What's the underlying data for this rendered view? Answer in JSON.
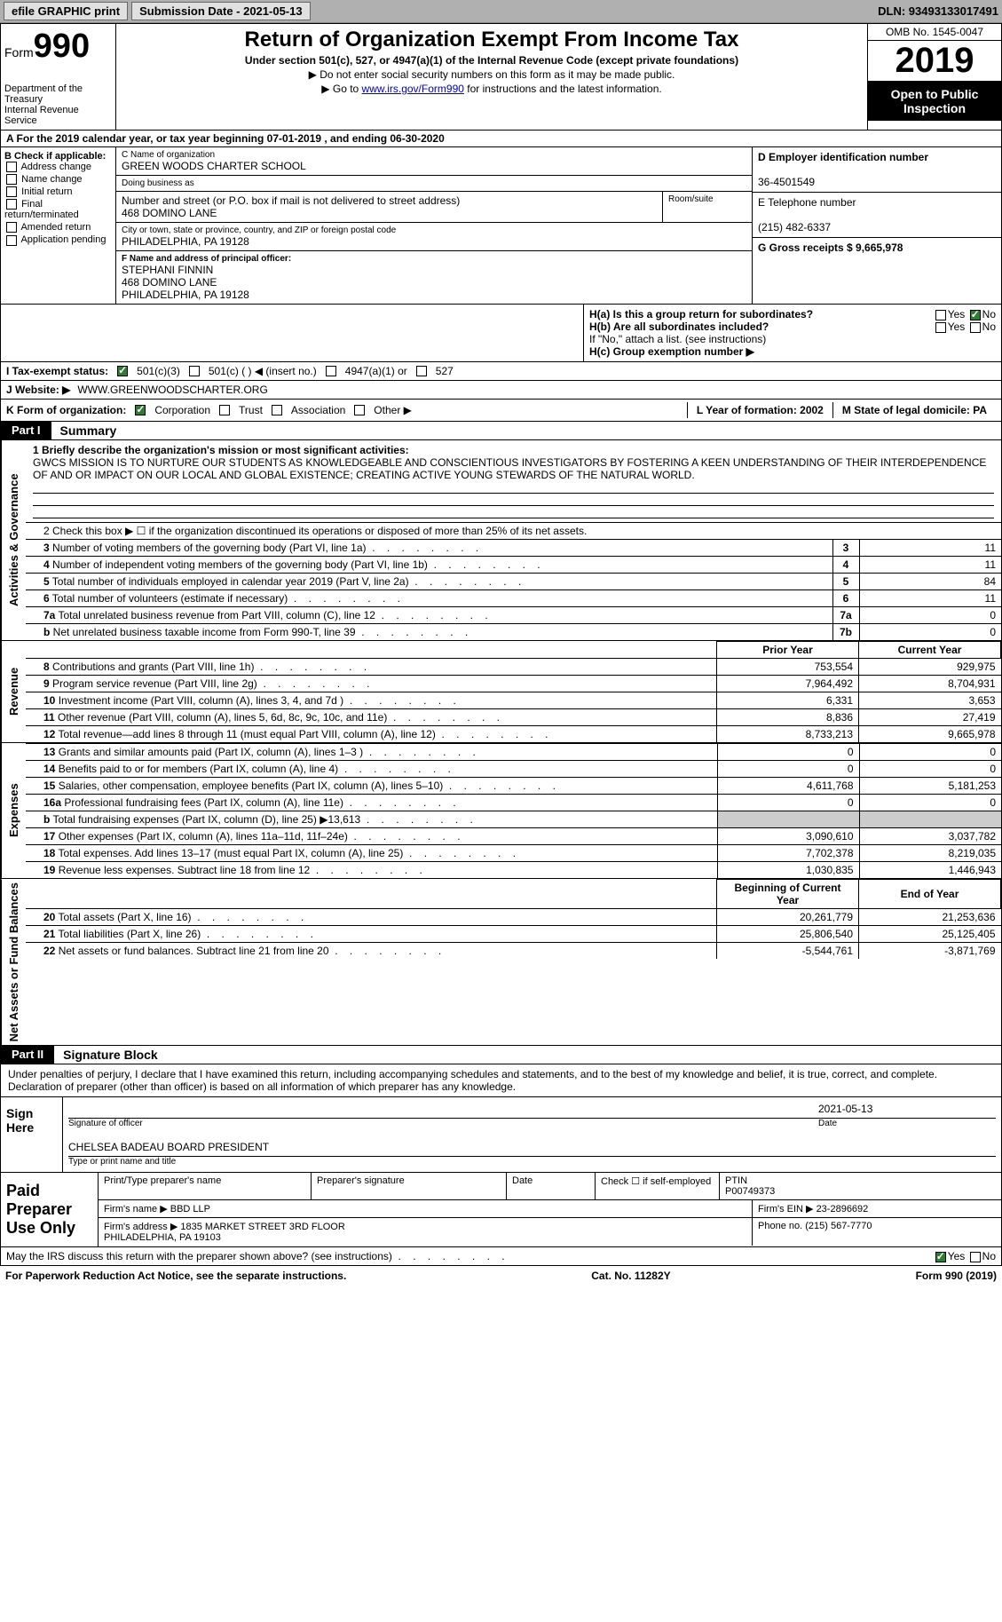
{
  "topbar": {
    "efile_btn": "efile GRAPHIC print",
    "submission_label": "Submission Date - 2021-05-13",
    "dln": "DLN: 93493133017491"
  },
  "header": {
    "form_prefix": "Form",
    "form_num": "990",
    "dept": "Department of the Treasury\nInternal Revenue Service",
    "title": "Return of Organization Exempt From Income Tax",
    "sub": "Under section 501(c), 527, or 4947(a)(1) of the Internal Revenue Code (except private foundations)",
    "note1": "▶ Do not enter social security numbers on this form as it may be made public.",
    "note2_pre": "▶ Go to ",
    "note2_link": "www.irs.gov/Form990",
    "note2_post": " for instructions and the latest information.",
    "omb": "OMB No. 1545-0047",
    "year": "2019",
    "inspect": "Open to Public Inspection"
  },
  "row_a": "A For the 2019 calendar year, or tax year beginning 07-01-2019   , and ending 06-30-2020",
  "col_b": {
    "title": "B Check if applicable:",
    "items": [
      "Address change",
      "Name change",
      "Initial return",
      "Final return/terminated",
      "Amended return",
      "Application pending"
    ]
  },
  "col_c": {
    "name_lbl": "C Name of organization",
    "name": "GREEN WOODS CHARTER SCHOOL",
    "dba_lbl": "Doing business as",
    "dba": "",
    "street_lbl": "Number and street (or P.O. box if mail is not delivered to street address)",
    "street": "468 DOMINO LANE",
    "room_lbl": "Room/suite",
    "city_lbl": "City or town, state or province, country, and ZIP or foreign postal code",
    "city": "PHILADELPHIA, PA  19128",
    "officer_lbl": "F Name and address of principal officer:",
    "officer": "STEPHANI FINNIN\n468 DOMINO LANE\nPHILADELPHIA, PA  19128"
  },
  "col_d": {
    "ein_lbl": "D Employer identification number",
    "ein": "36-4501549",
    "phone_lbl": "E Telephone number",
    "phone": "(215) 482-6337",
    "gross_lbl": "G Gross receipts $ 9,665,978"
  },
  "h_section": {
    "ha": "H(a)  Is this a group return for subordinates?",
    "hb": "H(b)  Are all subordinates included?",
    "hb_note": "If \"No,\" attach a list. (see instructions)",
    "hc": "H(c)  Group exemption number ▶"
  },
  "status_row": {
    "lbl": "I   Tax-exempt status:",
    "opts": [
      "501(c)(3)",
      "501(c) (  ) ◀ (insert no.)",
      "4947(a)(1) or",
      "527"
    ]
  },
  "website_row": {
    "lbl": "J   Website: ▶",
    "val": "WWW.GREENWOODSCHARTER.ORG"
  },
  "formorg_row": {
    "lbl": "K Form of organization:",
    "opts": [
      "Corporation",
      "Trust",
      "Association",
      "Other ▶"
    ],
    "year_lbl": "L Year of formation: 2002",
    "state_lbl": "M State of legal domicile: PA"
  },
  "part1": {
    "header": "Part I",
    "title": "Summary",
    "side1": "Activities & Governance",
    "side2": "Revenue",
    "side3": "Expenses",
    "side4": "Net Assets or Fund Balances",
    "mission_lbl": "1   Briefly describe the organization's mission or most significant activities:",
    "mission": "GWCS MISSION IS TO NURTURE OUR STUDENTS AS KNOWLEDGEABLE AND CONSCIENTIOUS INVESTIGATORS BY FOSTERING A KEEN UNDERSTANDING OF THEIR INTERDEPENDENCE OF AND OR IMPACT ON OUR LOCAL AND GLOBAL EXISTENCE; CREATING ACTIVE YOUNG STEWARDS OF THE NATURAL WORLD.",
    "line2": "2   Check this box ▶ ☐  if the organization discontinued its operations or disposed of more than 25% of its net assets.",
    "gov_rows": [
      {
        "n": "3",
        "lbl": "Number of voting members of the governing body (Part VI, line 1a)",
        "box": "3",
        "val": "11"
      },
      {
        "n": "4",
        "lbl": "Number of independent voting members of the governing body (Part VI, line 1b)",
        "box": "4",
        "val": "11"
      },
      {
        "n": "5",
        "lbl": "Total number of individuals employed in calendar year 2019 (Part V, line 2a)",
        "box": "5",
        "val": "84"
      },
      {
        "n": "6",
        "lbl": "Total number of volunteers (estimate if necessary)",
        "box": "6",
        "val": "11"
      },
      {
        "n": "7a",
        "lbl": "Total unrelated business revenue from Part VIII, column (C), line 12",
        "box": "7a",
        "val": "0"
      },
      {
        "n": "b",
        "lbl": "Net unrelated business taxable income from Form 990-T, line 39",
        "box": "7b",
        "val": "0"
      }
    ],
    "col_headers": [
      "Prior Year",
      "Current Year"
    ],
    "rev_rows": [
      {
        "n": "8",
        "lbl": "Contributions and grants (Part VIII, line 1h)",
        "py": "753,554",
        "cy": "929,975"
      },
      {
        "n": "9",
        "lbl": "Program service revenue (Part VIII, line 2g)",
        "py": "7,964,492",
        "cy": "8,704,931"
      },
      {
        "n": "10",
        "lbl": "Investment income (Part VIII, column (A), lines 3, 4, and 7d )",
        "py": "6,331",
        "cy": "3,653"
      },
      {
        "n": "11",
        "lbl": "Other revenue (Part VIII, column (A), lines 5, 6d, 8c, 9c, 10c, and 11e)",
        "py": "8,836",
        "cy": "27,419"
      },
      {
        "n": "12",
        "lbl": "Total revenue—add lines 8 through 11 (must equal Part VIII, column (A), line 12)",
        "py": "8,733,213",
        "cy": "9,665,978"
      }
    ],
    "exp_rows": [
      {
        "n": "13",
        "lbl": "Grants and similar amounts paid (Part IX, column (A), lines 1–3 )",
        "py": "0",
        "cy": "0"
      },
      {
        "n": "14",
        "lbl": "Benefits paid to or for members (Part IX, column (A), line 4)",
        "py": "0",
        "cy": "0"
      },
      {
        "n": "15",
        "lbl": "Salaries, other compensation, employee benefits (Part IX, column (A), lines 5–10)",
        "py": "4,611,768",
        "cy": "5,181,253"
      },
      {
        "n": "16a",
        "lbl": "Professional fundraising fees (Part IX, column (A), line 11e)",
        "py": "0",
        "cy": "0"
      },
      {
        "n": "b",
        "lbl": "Total fundraising expenses (Part IX, column (D), line 25) ▶13,613",
        "py": "",
        "cy": "",
        "grey": true
      },
      {
        "n": "17",
        "lbl": "Other expenses (Part IX, column (A), lines 11a–11d, 11f–24e)",
        "py": "3,090,610",
        "cy": "3,037,782"
      },
      {
        "n": "18",
        "lbl": "Total expenses. Add lines 13–17 (must equal Part IX, column (A), line 25)",
        "py": "7,702,378",
        "cy": "8,219,035"
      },
      {
        "n": "19",
        "lbl": "Revenue less expenses. Subtract line 18 from line 12",
        "py": "1,030,835",
        "cy": "1,446,943"
      }
    ],
    "bal_headers": [
      "Beginning of Current Year",
      "End of Year"
    ],
    "bal_rows": [
      {
        "n": "20",
        "lbl": "Total assets (Part X, line 16)",
        "py": "20,261,779",
        "cy": "21,253,636"
      },
      {
        "n": "21",
        "lbl": "Total liabilities (Part X, line 26)",
        "py": "25,806,540",
        "cy": "25,125,405"
      },
      {
        "n": "22",
        "lbl": "Net assets or fund balances. Subtract line 21 from line 20",
        "py": "-5,544,761",
        "cy": "-3,871,769"
      }
    ]
  },
  "part2": {
    "header": "Part II",
    "title": "Signature Block",
    "perjury": "Under penalties of perjury, I declare that I have examined this return, including accompanying schedules and statements, and to the best of my knowledge and belief, it is true, correct, and complete. Declaration of preparer (other than officer) is based on all information of which preparer has any knowledge.",
    "sign_here": "Sign Here",
    "sig_officer": "Signature of officer",
    "sig_date": "2021-05-13",
    "date_lbl": "Date",
    "officer_name": "CHELSEA BADEAU BOARD PRESIDENT",
    "name_lbl": "Type or print name and title",
    "paid_lbl": "Paid Preparer Use Only",
    "prep_name_lbl": "Print/Type preparer's name",
    "prep_sig_lbl": "Preparer's signature",
    "prep_date_lbl": "Date",
    "prep_check": "Check ☐ if self-employed",
    "ptin_lbl": "PTIN",
    "ptin": "P00749373",
    "firm_name_lbl": "Firm's name   ▶",
    "firm_name": "BBD LLP",
    "firm_ein_lbl": "Firm's EIN ▶",
    "firm_ein": "23-2896692",
    "firm_addr_lbl": "Firm's address ▶",
    "firm_addr": "1835 MARKET STREET 3RD FLOOR\nPHILADELPHIA, PA  19103",
    "firm_phone_lbl": "Phone no.",
    "firm_phone": "(215) 567-7770",
    "discuss": "May the IRS discuss this return with the preparer shown above? (see instructions)"
  },
  "footer": {
    "paperwork": "For Paperwork Reduction Act Notice, see the separate instructions.",
    "cat": "Cat. No. 11282Y",
    "form": "Form 990 (2019)"
  }
}
